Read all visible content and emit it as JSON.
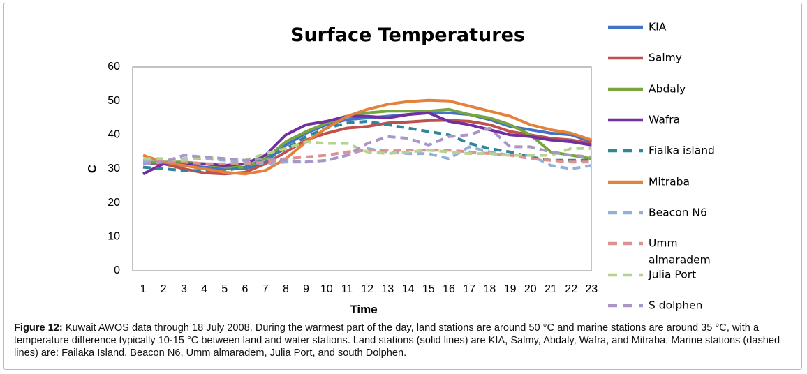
{
  "caption": {
    "label": "Figure 12:",
    "text": "Kuwait AWOS data through 18 July 2008. During the warmest part of the day, land stations are around 50 °C and marine stations are around 35 °C, with a temperature difference typically 10-15 °C between land and water stations. Land stations (solid lines) are KIA, Salmy, Abdaly, Wafra, and Mitraba. Marine stations (dashed lines) are: Failaka Island, Beacon N6, Umm almaradem, Julia Port, and south Dolphen."
  },
  "chart_data": {
    "type": "line",
    "title": "Surface Temperatures",
    "xlabel": "Time",
    "ylabel": "C",
    "ylim": [
      0,
      60
    ],
    "yticks": [
      0,
      10,
      20,
      30,
      40,
      50,
      60
    ],
    "x": [
      1,
      2,
      3,
      4,
      5,
      6,
      7,
      8,
      9,
      10,
      11,
      12,
      13,
      14,
      15,
      16,
      17,
      18,
      19,
      20,
      21,
      22,
      23
    ],
    "grid": false,
    "legend_position": "right",
    "series": [
      {
        "name": "KIA",
        "color": "#4472c4",
        "dashed": false,
        "values": [
          31.5,
          31.5,
          31,
          30.5,
          30,
          30,
          32,
          37,
          40.5,
          43,
          44.5,
          45,
          45.5,
          46,
          46.5,
          46.5,
          46,
          44.5,
          42.5,
          41.5,
          40.5,
          40,
          38
        ]
      },
      {
        "name": "Salmy",
        "color": "#c0504d",
        "dashed": false,
        "values": [
          32,
          31.5,
          30,
          28.8,
          28.5,
          29,
          31.5,
          35,
          38.5,
          40.5,
          42,
          42.5,
          43.5,
          43.8,
          44.2,
          44.3,
          44,
          43,
          41,
          40,
          39,
          38.5,
          37.5
        ]
      },
      {
        "name": "Abdaly",
        "color": "#77a640",
        "dashed": false,
        "values": [
          32,
          32,
          32,
          31.5,
          30.5,
          30.5,
          33,
          38,
          41,
          43.5,
          45.5,
          46.5,
          47,
          47,
          47,
          47.5,
          46,
          45,
          43,
          40,
          35,
          34,
          33
        ]
      },
      {
        "name": "Wafra",
        "color": "#7030a0",
        "dashed": false,
        "values": [
          28.5,
          31.5,
          31.5,
          31.5,
          31,
          31.5,
          34,
          40,
          43,
          44,
          45.5,
          45.5,
          45,
          46,
          46.5,
          44,
          43,
          41.5,
          40,
          39.5,
          38.5,
          38,
          37
        ]
      },
      {
        "name": "Fialka island",
        "color": "#31859b",
        "dashed": true,
        "values": [
          30.5,
          30,
          29.5,
          29.5,
          29.5,
          30.5,
          33,
          36,
          39.5,
          42,
          43.5,
          44,
          43,
          42,
          41,
          40,
          37.5,
          36,
          35,
          33.5,
          32.5,
          32.5,
          32.5
        ]
      },
      {
        "name": "Mitraba",
        "color": "#e3823c",
        "dashed": false,
        "values": [
          34,
          32,
          31,
          30,
          29,
          28.5,
          29.5,
          33,
          38,
          42,
          45.5,
          47.5,
          49,
          49.8,
          50.2,
          50,
          48.5,
          47,
          45.5,
          43,
          41.5,
          40.5,
          38.5
        ]
      },
      {
        "name": "Beacon N6",
        "color": "#93b0d8",
        "dashed": true,
        "values": [
          32,
          32,
          33,
          33,
          32.5,
          32,
          31.5,
          32,
          32,
          32.5,
          34,
          36,
          35,
          34.5,
          34.5,
          33,
          36.5,
          35,
          34,
          34,
          31,
          30,
          31
        ]
      },
      {
        "name": "Umm almaradem",
        "color": "#db9290",
        "dashed": true,
        "values": [
          33,
          32.5,
          32,
          31.5,
          31.5,
          31.5,
          32,
          33,
          33.5,
          34,
          35,
          35.5,
          35.5,
          35.5,
          35.5,
          35.5,
          35,
          34.5,
          34,
          33,
          32.5,
          32,
          32
        ]
      },
      {
        "name": "Julia Port",
        "color": "#b7d28e",
        "dashed": true,
        "values": [
          33,
          33,
          32.5,
          33.5,
          33,
          32.5,
          34.5,
          36,
          38,
          37.5,
          37.5,
          35,
          34.5,
          35,
          35.5,
          35,
          34.5,
          34.5,
          34,
          34,
          34,
          36,
          36
        ]
      },
      {
        "name": "S dolphen",
        "color": "#aa95c7",
        "dashed": true,
        "values": [
          31.5,
          32,
          34,
          33.5,
          33,
          32.5,
          33,
          32.5,
          32,
          32.5,
          34,
          37.5,
          39.5,
          39,
          37,
          39.5,
          40,
          42,
          36.5,
          36.5,
          35,
          34,
          33.5
        ]
      }
    ]
  }
}
